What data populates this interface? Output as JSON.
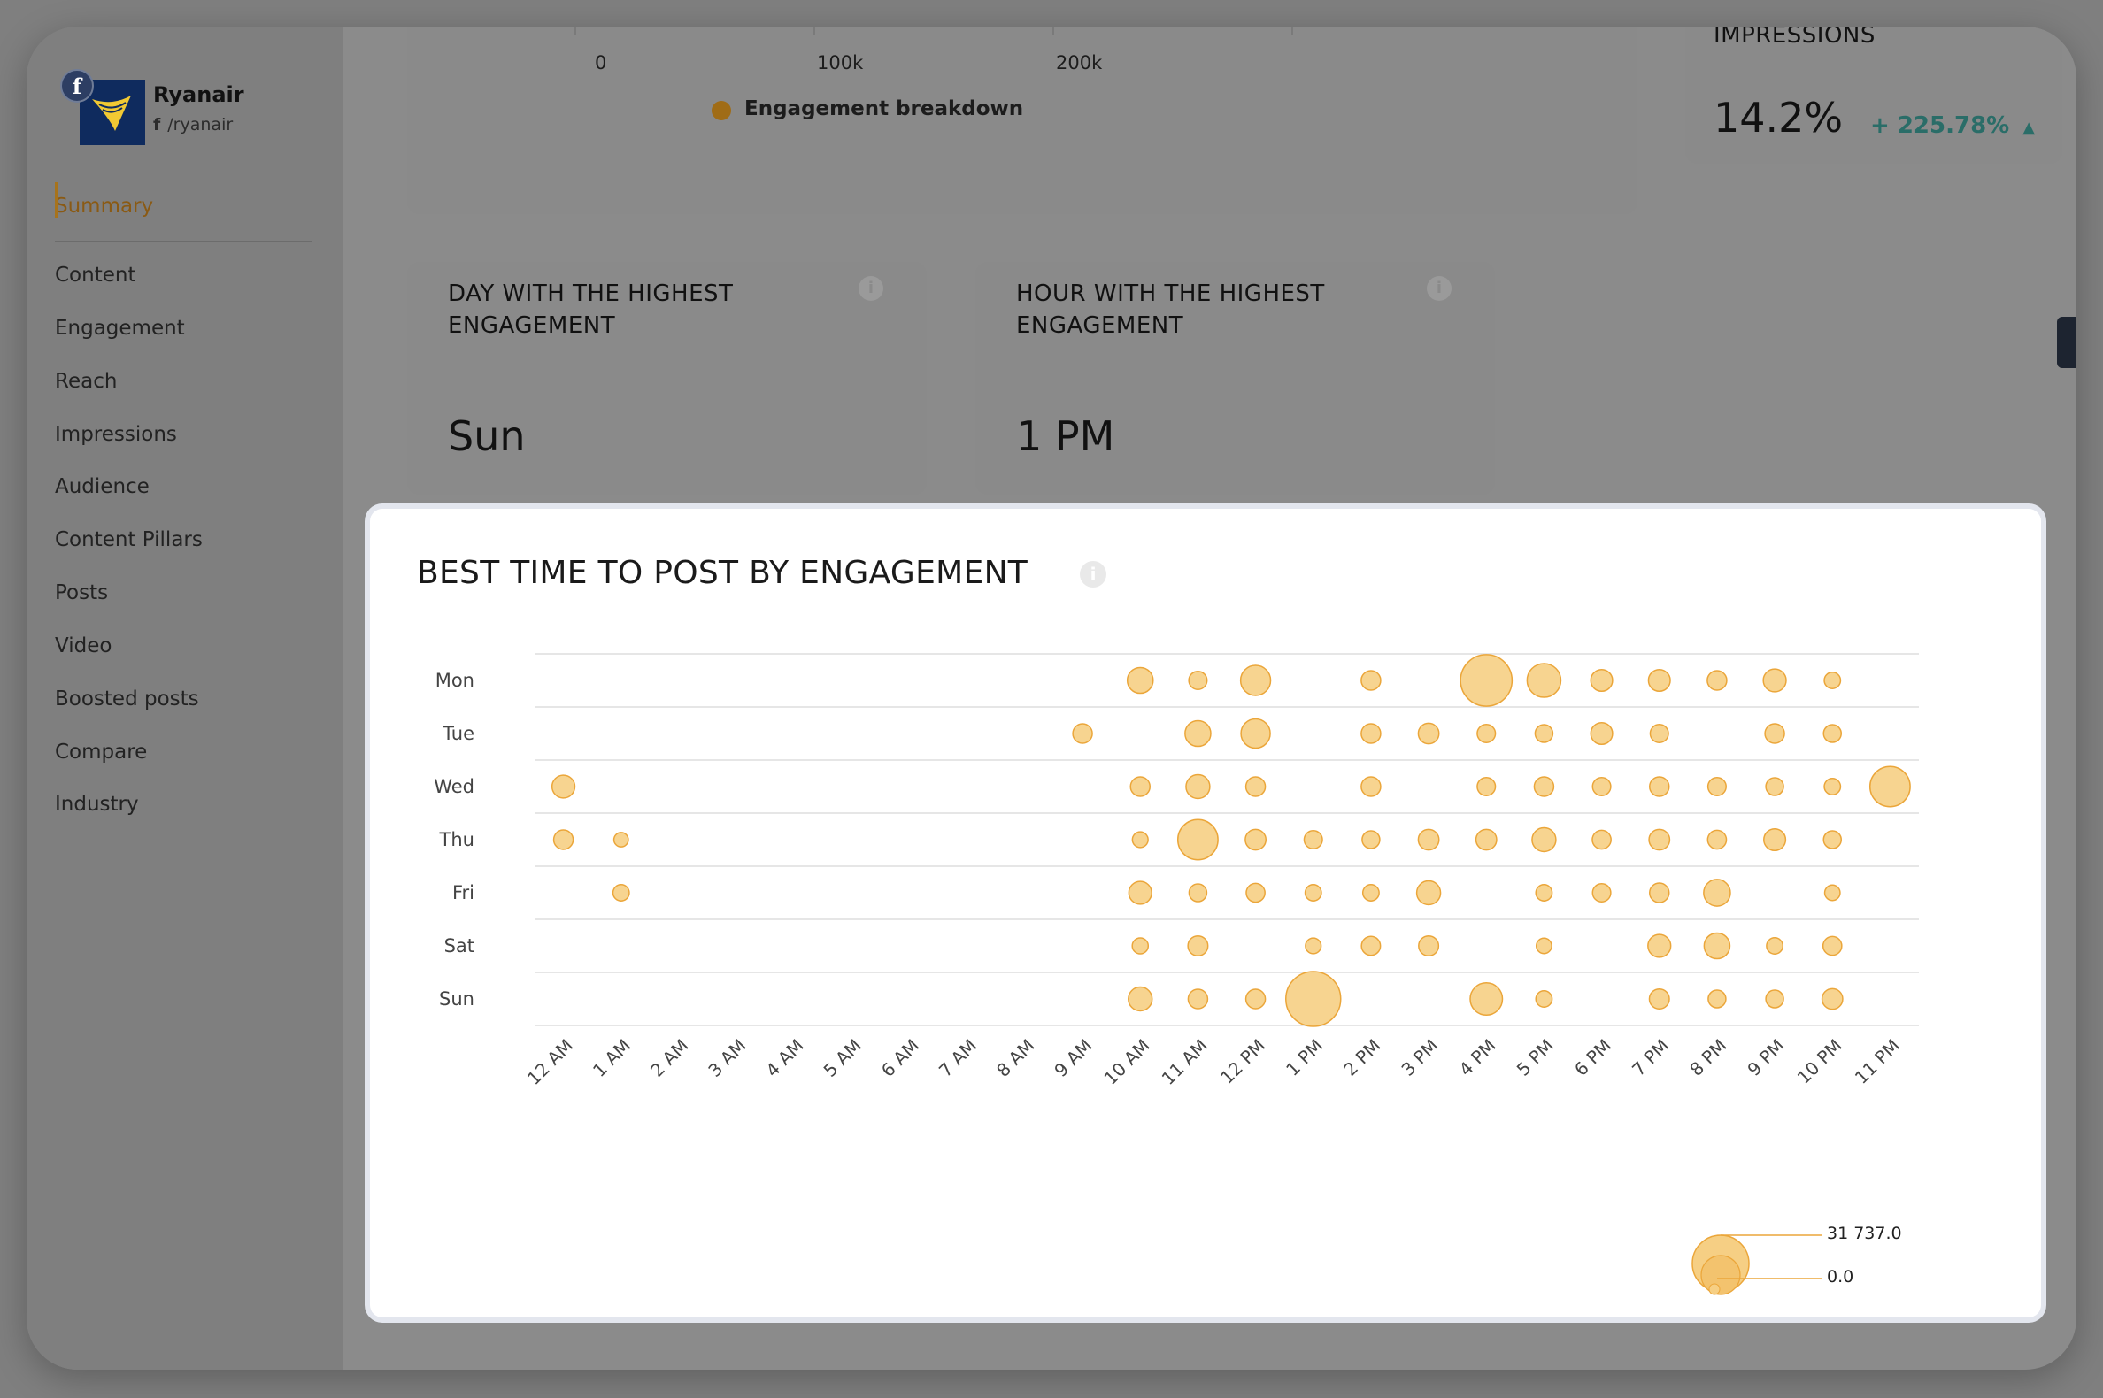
{
  "brand": {
    "name": "Ryanair",
    "handle": "/ryanair",
    "fb_glyph": "f"
  },
  "nav": {
    "items": [
      {
        "label": "Summary",
        "active": true
      },
      {
        "label": "Content"
      },
      {
        "label": "Engagement"
      },
      {
        "label": "Reach"
      },
      {
        "label": "Impressions"
      },
      {
        "label": "Audience"
      },
      {
        "label": "Content Pillars"
      },
      {
        "label": "Posts"
      },
      {
        "label": "Video"
      },
      {
        "label": "Boosted posts"
      },
      {
        "label": "Compare"
      },
      {
        "label": "Industry"
      }
    ]
  },
  "engagement_card": {
    "axis_ticks": [
      "0",
      "100k",
      "200k"
    ],
    "legend": "Engagement breakdown",
    "legend_color": "#a06c16"
  },
  "impressions_card": {
    "title": "IMPRESSIONS",
    "value": "14.2%",
    "delta": "+ 225.78%",
    "delta_color": "#2a6d68"
  },
  "day_card": {
    "title": "DAY WITH THE HIGHEST ENGAGEMENT",
    "value": "Sun",
    "info_icon": "info-icon"
  },
  "hour_card": {
    "title": "HOUR WITH THE HIGHEST ENGAGEMENT",
    "value": "1 PM",
    "info_icon": "info-icon"
  },
  "best_time": {
    "title": "BEST TIME TO POST BY ENGAGEMENT",
    "bubble_legend": {
      "max": "31 737.0",
      "min": "0.0"
    }
  },
  "chart_data": {
    "type": "scatter",
    "subtype": "bubble",
    "x_categories": [
      "12 AM",
      "1 AM",
      "2 AM",
      "3 AM",
      "4 AM",
      "5 AM",
      "6 AM",
      "7 AM",
      "8 AM",
      "9 AM",
      "10 AM",
      "11 AM",
      "12 PM",
      "1 PM",
      "2 PM",
      "3 PM",
      "4 PM",
      "5 PM",
      "6 PM",
      "7 PM",
      "8 PM",
      "9 PM",
      "10 PM",
      "11 PM"
    ],
    "y_categories": [
      "Mon",
      "Tue",
      "Wed",
      "Thu",
      "Fri",
      "Sat",
      "Sun"
    ],
    "bubble_color": "#f6cf84",
    "bubble_stroke": "#eba63a",
    "size_range": [
      0,
      31737
    ],
    "points": [
      {
        "day": "Mon",
        "hour": 10,
        "value": 7000
      },
      {
        "day": "Mon",
        "hour": 11,
        "value": 3500
      },
      {
        "day": "Mon",
        "hour": 12,
        "value": 9500
      },
      {
        "day": "Mon",
        "hour": 14,
        "value": 4000
      },
      {
        "day": "Mon",
        "hour": 16,
        "value": 28000
      },
      {
        "day": "Mon",
        "hour": 17,
        "value": 12000
      },
      {
        "day": "Mon",
        "hour": 18,
        "value": 5000
      },
      {
        "day": "Mon",
        "hour": 19,
        "value": 5000
      },
      {
        "day": "Mon",
        "hour": 20,
        "value": 4000
      },
      {
        "day": "Mon",
        "hour": 21,
        "value": 5500
      },
      {
        "day": "Mon",
        "hour": 22,
        "value": 2800
      },
      {
        "day": "Tue",
        "hour": 9,
        "value": 4000
      },
      {
        "day": "Tue",
        "hour": 11,
        "value": 7000
      },
      {
        "day": "Tue",
        "hour": 12,
        "value": 9000
      },
      {
        "day": "Tue",
        "hour": 14,
        "value": 4000
      },
      {
        "day": "Tue",
        "hour": 15,
        "value": 4500
      },
      {
        "day": "Tue",
        "hour": 16,
        "value": 3500
      },
      {
        "day": "Tue",
        "hour": 17,
        "value": 3300
      },
      {
        "day": "Tue",
        "hour": 18,
        "value": 5000
      },
      {
        "day": "Tue",
        "hour": 19,
        "value": 3500
      },
      {
        "day": "Tue",
        "hour": 21,
        "value": 4000
      },
      {
        "day": "Tue",
        "hour": 22,
        "value": 3300
      },
      {
        "day": "Wed",
        "hour": 0,
        "value": 5500
      },
      {
        "day": "Wed",
        "hour": 10,
        "value": 4000
      },
      {
        "day": "Wed",
        "hour": 11,
        "value": 6000
      },
      {
        "day": "Wed",
        "hour": 12,
        "value": 4000
      },
      {
        "day": "Wed",
        "hour": 14,
        "value": 4000
      },
      {
        "day": "Wed",
        "hour": 16,
        "value": 3500
      },
      {
        "day": "Wed",
        "hour": 17,
        "value": 4000
      },
      {
        "day": "Wed",
        "hour": 18,
        "value": 3500
      },
      {
        "day": "Wed",
        "hour": 19,
        "value": 4000
      },
      {
        "day": "Wed",
        "hour": 20,
        "value": 3500
      },
      {
        "day": "Wed",
        "hour": 21,
        "value": 3300
      },
      {
        "day": "Wed",
        "hour": 22,
        "value": 2800
      },
      {
        "day": "Wed",
        "hour": 23,
        "value": 17000
      },
      {
        "day": "Thu",
        "hour": 0,
        "value": 4000
      },
      {
        "day": "Thu",
        "hour": 1,
        "value": 2200
      },
      {
        "day": "Thu",
        "hour": 10,
        "value": 2600
      },
      {
        "day": "Thu",
        "hour": 11,
        "value": 17000
      },
      {
        "day": "Thu",
        "hour": 12,
        "value": 4500
      },
      {
        "day": "Thu",
        "hour": 13,
        "value": 3500
      },
      {
        "day": "Thu",
        "hour": 14,
        "value": 3300
      },
      {
        "day": "Thu",
        "hour": 15,
        "value": 4500
      },
      {
        "day": "Thu",
        "hour": 16,
        "value": 4500
      },
      {
        "day": "Thu",
        "hour": 17,
        "value": 6000
      },
      {
        "day": "Thu",
        "hour": 18,
        "value": 3700
      },
      {
        "day": "Thu",
        "hour": 19,
        "value": 4500
      },
      {
        "day": "Thu",
        "hour": 20,
        "value": 3700
      },
      {
        "day": "Thu",
        "hour": 21,
        "value": 5000
      },
      {
        "day": "Thu",
        "hour": 22,
        "value": 3300
      },
      {
        "day": "Fri",
        "hour": 1,
        "value": 2800
      },
      {
        "day": "Fri",
        "hour": 10,
        "value": 5500
      },
      {
        "day": "Fri",
        "hour": 11,
        "value": 3300
      },
      {
        "day": "Fri",
        "hour": 12,
        "value": 3700
      },
      {
        "day": "Fri",
        "hour": 13,
        "value": 2800
      },
      {
        "day": "Fri",
        "hour": 14,
        "value": 2800
      },
      {
        "day": "Fri",
        "hour": 15,
        "value": 6000
      },
      {
        "day": "Fri",
        "hour": 17,
        "value": 2800
      },
      {
        "day": "Fri",
        "hour": 18,
        "value": 3500
      },
      {
        "day": "Fri",
        "hour": 19,
        "value": 4000
      },
      {
        "day": "Fri",
        "hour": 20,
        "value": 7500
      },
      {
        "day": "Fri",
        "hour": 22,
        "value": 2500
      },
      {
        "day": "Sat",
        "hour": 10,
        "value": 2700
      },
      {
        "day": "Sat",
        "hour": 11,
        "value": 4200
      },
      {
        "day": "Sat",
        "hour": 13,
        "value": 2600
      },
      {
        "day": "Sat",
        "hour": 14,
        "value": 3800
      },
      {
        "day": "Sat",
        "hour": 15,
        "value": 4200
      },
      {
        "day": "Sat",
        "hour": 17,
        "value": 2500
      },
      {
        "day": "Sat",
        "hour": 19,
        "value": 5500
      },
      {
        "day": "Sat",
        "hour": 20,
        "value": 7000
      },
      {
        "day": "Sat",
        "hour": 21,
        "value": 2800
      },
      {
        "day": "Sat",
        "hour": 22,
        "value": 3700
      },
      {
        "day": "Sun",
        "hour": 10,
        "value": 6000
      },
      {
        "day": "Sun",
        "hour": 11,
        "value": 4000
      },
      {
        "day": "Sun",
        "hour": 12,
        "value": 4000
      },
      {
        "day": "Sun",
        "hour": 13,
        "value": 31737
      },
      {
        "day": "Sun",
        "hour": 16,
        "value": 11000
      },
      {
        "day": "Sun",
        "hour": 17,
        "value": 2800
      },
      {
        "day": "Sun",
        "hour": 19,
        "value": 4200
      },
      {
        "day": "Sun",
        "hour": 20,
        "value": 3300
      },
      {
        "day": "Sun",
        "hour": 21,
        "value": 3300
      },
      {
        "day": "Sun",
        "hour": 22,
        "value": 4500
      }
    ]
  }
}
